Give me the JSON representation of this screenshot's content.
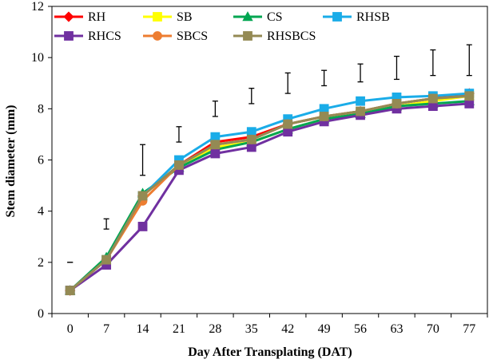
{
  "chart_data": {
    "type": "line",
    "title": "",
    "xlabel": "Day After Transplating (DAT)",
    "ylabel": "Stem diameter (mm)",
    "x": [
      0,
      7,
      14,
      21,
      28,
      35,
      42,
      49,
      56,
      63,
      70,
      77
    ],
    "ylim": [
      0,
      12
    ],
    "yticks": [
      0,
      2,
      4,
      6,
      8,
      10,
      12
    ],
    "grid": false,
    "legend_position": "top-left",
    "series": [
      {
        "name": "RH",
        "color": "#FF0000",
        "marker": "diamond",
        "values": [
          0.9,
          2.1,
          4.6,
          5.8,
          6.7,
          6.9,
          7.4,
          7.7,
          7.9,
          8.2,
          8.4,
          8.6
        ]
      },
      {
        "name": "SB",
        "color": "#FFFF00",
        "marker": "square",
        "values": [
          0.9,
          2.1,
          4.6,
          5.8,
          6.5,
          6.7,
          7.2,
          7.6,
          7.8,
          8.1,
          8.3,
          8.5
        ]
      },
      {
        "name": "CS",
        "color": "#00A651",
        "marker": "triangle",
        "values": [
          0.9,
          2.2,
          4.7,
          5.7,
          6.4,
          6.7,
          7.2,
          7.6,
          7.8,
          8.1,
          8.2,
          8.3
        ]
      },
      {
        "name": "RHSB",
        "color": "#1AACE8",
        "marker": "square",
        "values": [
          0.9,
          2.1,
          4.6,
          6.0,
          6.9,
          7.1,
          7.6,
          8.0,
          8.3,
          8.45,
          8.5,
          8.6
        ]
      },
      {
        "name": "RHCS",
        "color": "#7030A0",
        "marker": "square",
        "values": [
          0.9,
          1.9,
          3.4,
          5.6,
          6.25,
          6.5,
          7.1,
          7.5,
          7.75,
          8.0,
          8.1,
          8.2
        ]
      },
      {
        "name": "SBCS",
        "color": "#ED7D31",
        "marker": "circle",
        "values": [
          0.9,
          2.1,
          4.4,
          5.8,
          6.6,
          6.8,
          7.4,
          7.7,
          7.9,
          8.2,
          8.4,
          8.5
        ]
      },
      {
        "name": "RHSBCS",
        "color": "#948A54",
        "marker": "square",
        "values": [
          0.9,
          2.1,
          4.6,
          5.8,
          6.6,
          6.8,
          7.4,
          7.7,
          7.9,
          8.2,
          8.4,
          8.5
        ]
      }
    ],
    "error_bars": [
      {
        "x": 0,
        "low": 2.0,
        "high": 2.0
      },
      {
        "x": 7,
        "low": 3.3,
        "high": 3.7
      },
      {
        "x": 14,
        "low": 5.4,
        "high": 6.6
      },
      {
        "x": 21,
        "low": 6.7,
        "high": 7.3
      },
      {
        "x": 28,
        "low": 7.7,
        "high": 8.3
      },
      {
        "x": 35,
        "low": 8.2,
        "high": 8.8
      },
      {
        "x": 42,
        "low": 8.6,
        "high": 9.4
      },
      {
        "x": 49,
        "low": 8.9,
        "high": 9.5
      },
      {
        "x": 56,
        "low": 9.05,
        "high": 9.75
      },
      {
        "x": 63,
        "low": 9.15,
        "high": 10.05
      },
      {
        "x": 70,
        "low": 9.3,
        "high": 10.3
      },
      {
        "x": 77,
        "low": 9.3,
        "high": 10.5
      }
    ]
  }
}
